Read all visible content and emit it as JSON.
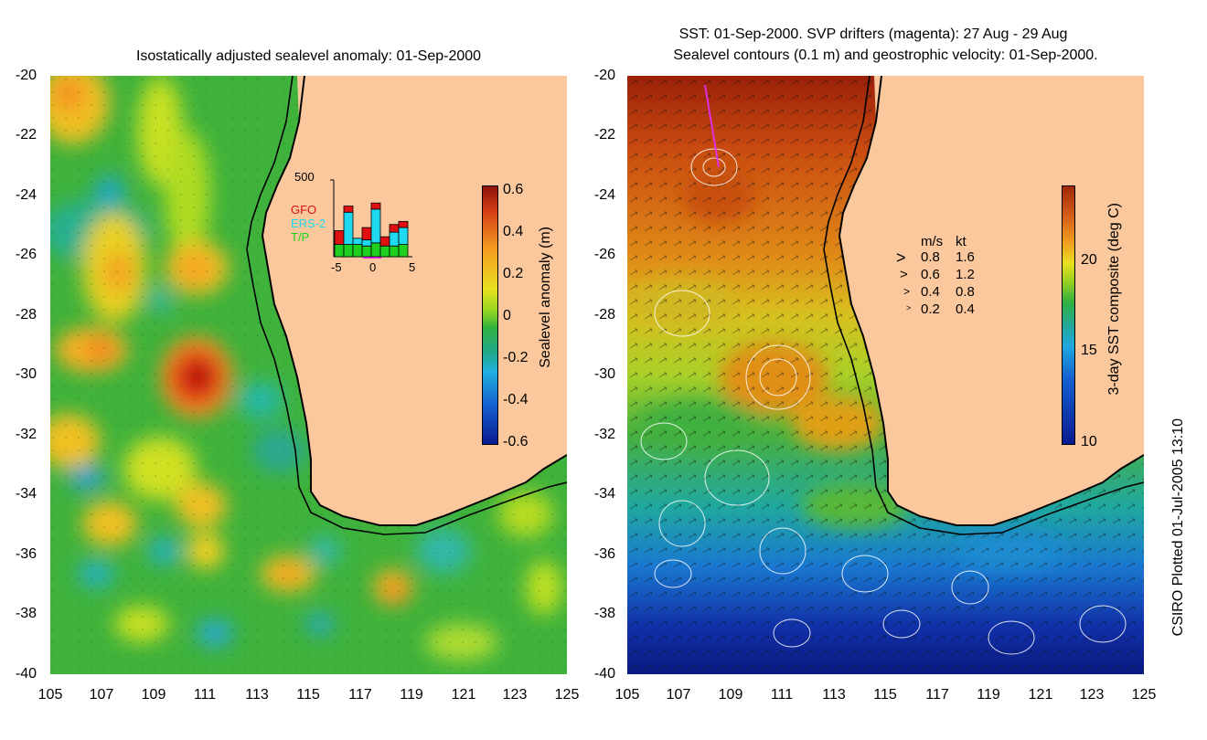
{
  "left_panel": {
    "title": "Isostatically adjusted sealevel anomaly: 01-Sep-2000",
    "colorbar": {
      "label": "Sealevel anomaly (m)",
      "ticks": [
        "0.6",
        "0.4",
        "0.2",
        "0",
        "-0.2",
        "-0.4",
        "-0.6"
      ],
      "range": [
        -0.6,
        0.6
      ]
    },
    "inset": {
      "ymax_label": "500",
      "x_ticks": [
        "-5",
        "0",
        "5"
      ],
      "legend": [
        {
          "label": "GFO",
          "color": "#e01010"
        },
        {
          "label": "ERS-2",
          "color": "#20d8f0"
        },
        {
          "label": "T/P",
          "color": "#20d020"
        }
      ],
      "bars": [
        {
          "tp": 80,
          "ers": 0,
          "gfo": 90
        },
        {
          "tp": 80,
          "ers": 210,
          "gfo": 40
        },
        {
          "tp": 80,
          "ers": 40,
          "gfo": 0
        },
        {
          "tp": 70,
          "ers": 40,
          "gfo": 80
        },
        {
          "tp": 90,
          "ers": 220,
          "gfo": 40
        },
        {
          "tp": 70,
          "ers": 0,
          "gfo": 60
        },
        {
          "tp": 70,
          "ers": 90,
          "gfo": 50
        },
        {
          "tp": 80,
          "ers": 110,
          "gfo": 40
        }
      ]
    }
  },
  "right_panel": {
    "title_line1": "SST: 01-Sep-2000. SVP drifters (magenta): 27 Aug - 29 Aug",
    "title_line2": "Sealevel contours (0.1 m) and geostrophic velocity: 01-Sep-2000.",
    "colorbar": {
      "label": "3-day SST composite (deg C)",
      "ticks": [
        "20",
        "15",
        "10"
      ],
      "range": [
        10,
        24
      ]
    },
    "velocity_legend": {
      "header_ms": "m/s",
      "header_kt": "kt",
      "rows": [
        {
          "ms": "0.8",
          "kt": "1.6"
        },
        {
          "ms": "0.6",
          "kt": "1.2"
        },
        {
          "ms": "0.4",
          "kt": "0.8"
        },
        {
          "ms": "0.2",
          "kt": "0.4"
        }
      ]
    }
  },
  "axes": {
    "lat_labels": [
      "-20",
      "-22",
      "-24",
      "-26",
      "-28",
      "-30",
      "-32",
      "-34",
      "-36",
      "-38",
      "-40"
    ],
    "lon_labels": [
      "105",
      "107",
      "109",
      "111",
      "113",
      "115",
      "117",
      "119",
      "121",
      "123",
      "125"
    ]
  },
  "credit": "CSIRO Plotted 01-Jul-2005 13:10",
  "colors": {
    "land": "#fac89c",
    "coastline": "#000000",
    "sla_positive": "#c01010",
    "sla_negative": "#1a40c0",
    "sst_warm": "#a02808",
    "sst_cold": "#0a1c8c"
  }
}
